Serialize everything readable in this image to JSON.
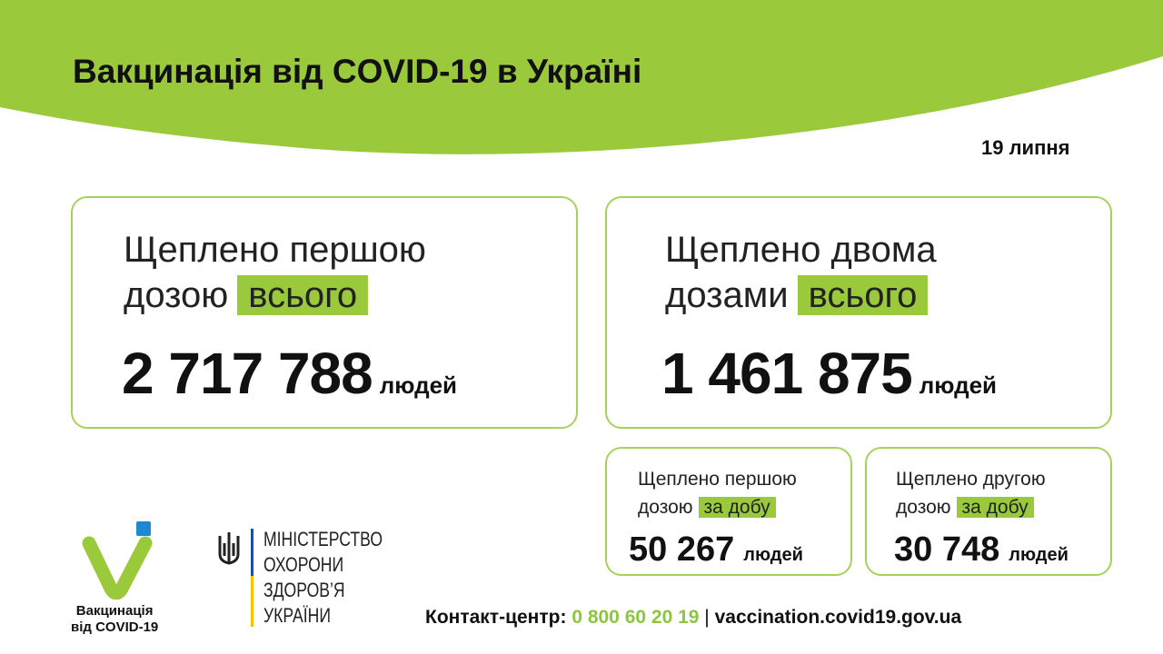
{
  "header": {
    "title": "Вакцинація від COVID-19 в Україні",
    "date": "19 липня"
  },
  "first_total": {
    "line1": "Щеплено першою",
    "line2": "дозою",
    "highlight": "всього",
    "value": "2 717 788",
    "unit": "людей"
  },
  "second_total": {
    "line1": "Щеплено двома",
    "line2": "дозами",
    "highlight": "всього",
    "value": "1 461 875",
    "unit": "людей"
  },
  "first_daily": {
    "line1": "Щеплено першою",
    "line2": "дозою",
    "highlight": "за добу",
    "value": "50 267",
    "unit": "людей"
  },
  "second_daily": {
    "line1": "Щеплено другою",
    "line2": "дозою",
    "highlight": "за добу",
    "value": "30 748",
    "unit": "людей"
  },
  "logo": {
    "line1": "Вакцинація",
    "line2": "від COVID-19"
  },
  "ministry": {
    "lines": [
      "МІНІСТЕРСТВО",
      "ОХОРОНИ",
      "ЗДОРОВ’Я",
      "УКРАЇНИ"
    ]
  },
  "footer": {
    "label": "Контакт-центр:",
    "phone": "0 800 60 20 19",
    "separator": "|",
    "website": "vaccination.covid19.gov.ua"
  },
  "colors": {
    "accent": "#9aca3c",
    "blue": "#1e88d0"
  }
}
